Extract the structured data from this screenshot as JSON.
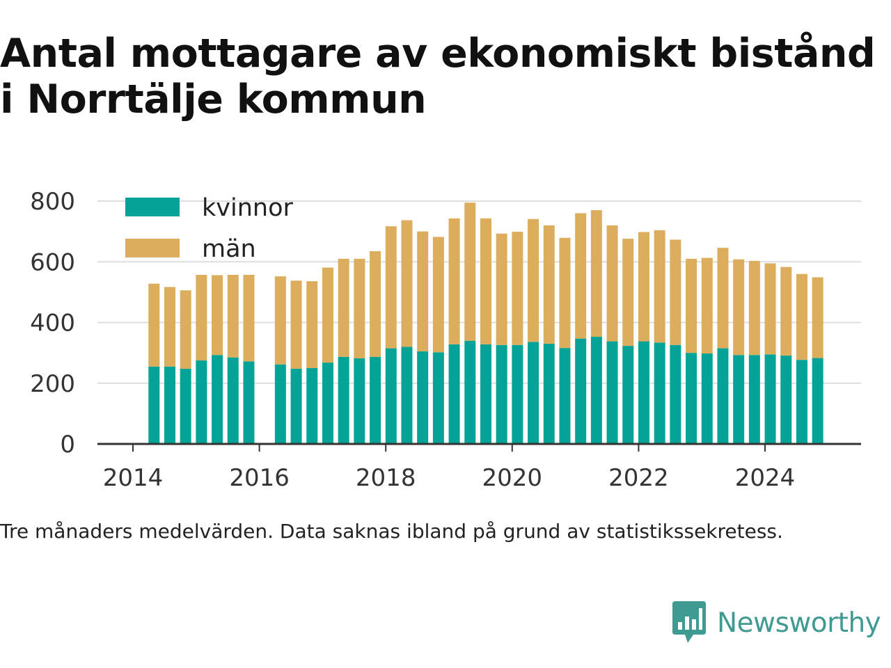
{
  "title": "Antal mottagare av ekonomiskt bistånd i Norrtälje kommun",
  "note": "Tre månaders medelvärden. Data saknas ibland på grund av statistikssekretess.",
  "brand": {
    "name": "Newsworthy",
    "color": "#3f9a92",
    "icon": "newsworthy-logo-icon"
  },
  "colors": {
    "kvinnor": "#03a497",
    "man": "#dbad5c",
    "grid": "#dddddd",
    "axis": "#333333"
  },
  "chart_data": {
    "type": "bar",
    "stacked": true,
    "title": "Antal mottagare av ekonomiskt bistånd i Norrtälje kommun",
    "xlabel": "",
    "ylabel": "",
    "ylim": [
      0,
      800
    ],
    "yticks": [
      "0",
      "200",
      "400",
      "600",
      "800"
    ],
    "xticks": [
      "2014",
      "2016",
      "2018",
      "2020",
      "2022",
      "2024"
    ],
    "grid": true,
    "legend_position": "top-left",
    "categories": [
      "2014-05",
      "2014-08",
      "2014-11",
      "2015-02",
      "2015-05",
      "2015-08",
      "2015-11",
      "2016-02",
      "2016-05",
      "2016-08",
      "2016-11",
      "2017-02",
      "2017-05",
      "2017-08",
      "2017-11",
      "2018-02",
      "2018-05",
      "2018-08",
      "2018-11",
      "2019-02",
      "2019-05",
      "2019-08",
      "2019-11",
      "2020-02",
      "2020-05",
      "2020-08",
      "2020-11",
      "2021-02",
      "2021-05",
      "2021-08",
      "2021-11",
      "2022-02",
      "2022-05",
      "2022-08",
      "2022-11",
      "2023-02",
      "2023-05",
      "2023-08",
      "2023-11",
      "2024-02",
      "2024-05",
      "2024-08",
      "2024-11"
    ],
    "series": [
      {
        "name": "kvinnor",
        "values": [
          255,
          255,
          248,
          275,
          293,
          285,
          272,
          null,
          262,
          248,
          250,
          268,
          287,
          282,
          287,
          315,
          320,
          305,
          302,
          328,
          340,
          328,
          326,
          326,
          336,
          330,
          316,
          347,
          353,
          338,
          323,
          338,
          334,
          326,
          300,
          298,
          315,
          293,
          293,
          295,
          291,
          277,
          283
        ]
      },
      {
        "name": "män",
        "values": [
          273,
          262,
          258,
          282,
          263,
          272,
          285,
          null,
          290,
          290,
          286,
          313,
          323,
          328,
          348,
          402,
          417,
          395,
          380,
          415,
          455,
          415,
          367,
          373,
          405,
          390,
          363,
          413,
          417,
          382,
          353,
          360,
          370,
          347,
          310,
          315,
          331,
          315,
          310,
          300,
          292,
          283,
          266
        ]
      }
    ]
  }
}
